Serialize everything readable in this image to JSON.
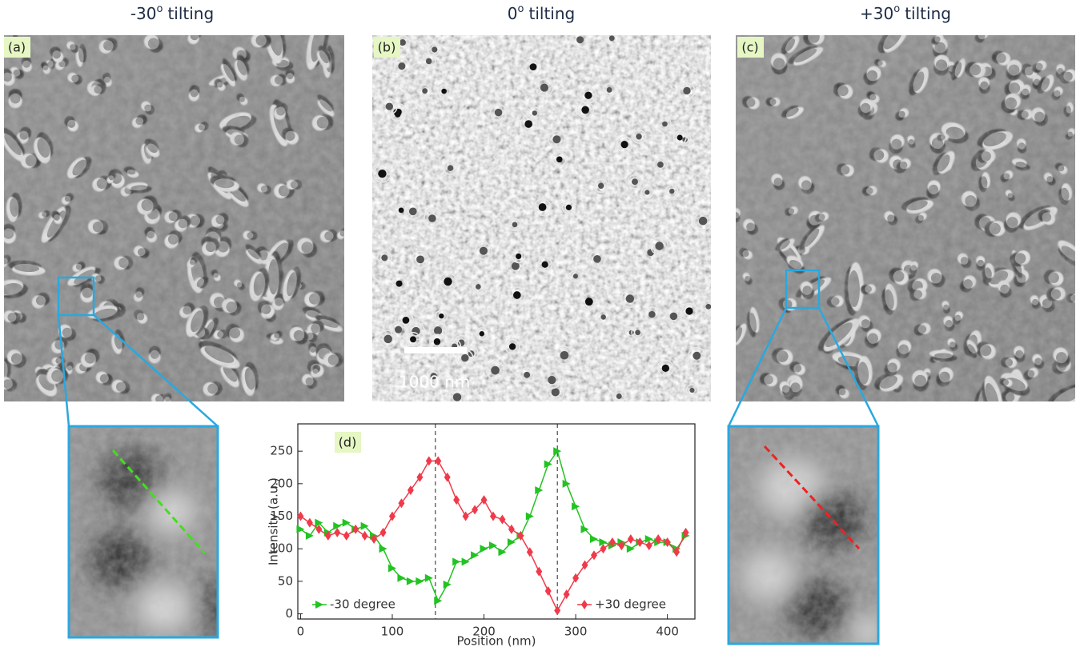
{
  "panels": [
    {
      "label": "(a)",
      "title": {
        "angle": "-30",
        "degree": "o",
        "text": "tilting"
      }
    },
    {
      "label": "(b)",
      "title": {
        "angle": "0",
        "degree": "o",
        "text": "tilting"
      }
    },
    {
      "label": "(c)",
      "title": {
        "angle": "+30",
        "degree": "o",
        "text": "tilting"
      }
    }
  ],
  "scale_bar": "1000 nm",
  "chart_data": {
    "type": "line",
    "label": "(d)",
    "x_label": "Position (nm)",
    "y_label": "Intensity (a.u.)",
    "x": [
      0,
      10,
      20,
      30,
      40,
      50,
      60,
      70,
      80,
      90,
      100,
      110,
      120,
      130,
      140,
      150,
      160,
      170,
      180,
      190,
      200,
      210,
      220,
      230,
      240,
      250,
      260,
      270,
      280,
      290,
      300,
      310,
      320,
      330,
      340,
      350,
      360,
      370,
      380,
      390,
      400,
      410,
      420
    ],
    "series": [
      {
        "name": "-30 degree",
        "color": "#22c322",
        "marker": "triangle",
        "values": [
          130,
          120,
          140,
          125,
          135,
          140,
          130,
          135,
          120,
          100,
          70,
          55,
          50,
          50,
          55,
          20,
          45,
          80,
          80,
          90,
          100,
          105,
          95,
          110,
          120,
          150,
          190,
          230,
          250,
          200,
          165,
          130,
          115,
          110,
          105,
          110,
          100,
          110,
          115,
          110,
          110,
          100,
          120
        ]
      },
      {
        "name": "+30 degree",
        "color": "#f03a4a",
        "marker": "diamond",
        "values": [
          150,
          140,
          130,
          120,
          125,
          120,
          130,
          120,
          115,
          125,
          150,
          170,
          190,
          210,
          235,
          235,
          210,
          175,
          150,
          160,
          175,
          150,
          145,
          130,
          120,
          95,
          65,
          35,
          5,
          30,
          55,
          75,
          90,
          100,
          110,
          105,
          115,
          110,
          105,
          115,
          110,
          95,
          125
        ]
      }
    ],
    "xlim": [
      -3,
      430
    ],
    "ylim": [
      -8,
      292
    ],
    "xticks": [
      0,
      100,
      200,
      300,
      400
    ],
    "yticks": [
      0,
      50,
      100,
      150,
      200,
      250
    ],
    "vlines": [
      147,
      280
    ]
  }
}
